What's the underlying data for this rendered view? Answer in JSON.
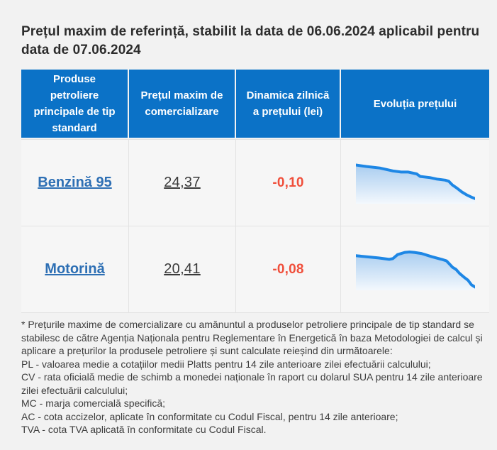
{
  "title": "Prețul maxim de referință, stabilit la data de 06.06.2024 aplicabil pentru data de 07.06.2024",
  "table": {
    "headers": [
      "Produse petroliere principale de tip standard",
      "Prețul maxim de comercializare",
      "Dinamica zilnică a prețului (lei)",
      "Evoluția prețului"
    ],
    "rows": [
      {
        "product": "Benzină 95",
        "price": "24,37",
        "delta": "-0,10"
      },
      {
        "product": "Motorină",
        "price": "20,41",
        "delta": "-0,08"
      }
    ]
  },
  "footnotes": [
    "* Prețurile maxime de comercializare cu amănuntul a produselor petroliere principale de tip standard se stabilesc de către Agenția Naționala pentru Reglementare în Energetică în baza Metodologiei de calcul și aplicare a prețurilor la produsele petroliere și sunt calculate reieșind din următoarele:",
    "PL - valoarea medie a cotațiilor medii Platts pentru 14 zile anterioare zilei efectuării calculului;",
    "CV - rata oficială medie de schimb a monedei naționale în raport cu dolarul SUA pentru 14 zile anterioare zilei efectuării calculului;",
    "MC - marja comercială specifică;",
    "AC - cota accizelor, aplicate în conformitate cu Codul Fiscal, pentru 14 zile anterioare;",
    "TVA - cota TVA aplicată în conformitate cu Codul Fiscal."
  ],
  "colors": {
    "header_bg": "#0b72c7",
    "link": "#2d6fb4",
    "negative": "#f04f3b",
    "sparkline_line": "#1e87e5",
    "sparkline_fill_top": "#a9cdf0",
    "sparkline_fill_bottom": "#f3f8fd",
    "page_bg": "#f2f2f2"
  },
  "chart_data": [
    {
      "type": "area",
      "name": "Benzină 95 — evoluția prețului (trend, normalizat)",
      "x": [
        0,
        0.09,
        0.2,
        0.31,
        0.38,
        0.44,
        0.51,
        0.54,
        0.62,
        0.68,
        0.75,
        0.78,
        0.81,
        0.85,
        0.89,
        0.93,
        0.97,
        1
      ],
      "values_normalized": [
        0.99,
        0.95,
        0.91,
        0.83,
        0.8,
        0.8,
        0.75,
        0.68,
        0.65,
        0.61,
        0.58,
        0.55,
        0.45,
        0.36,
        0.26,
        0.18,
        0.12,
        0.08
      ],
      "trend": "descending",
      "axes_visible": false
    },
    {
      "type": "area",
      "name": "Motorină — evoluția prețului (trend, normalizat)",
      "x": [
        0,
        0.09,
        0.19,
        0.28,
        0.31,
        0.35,
        0.41,
        0.45,
        0.49,
        0.55,
        0.64,
        0.72,
        0.76,
        0.79,
        0.81,
        0.84,
        0.87,
        0.91,
        0.94,
        0.97,
        1
      ],
      "values_normalized": [
        0.88,
        0.85,
        0.82,
        0.78,
        0.8,
        0.91,
        0.97,
        0.98,
        0.97,
        0.94,
        0.85,
        0.78,
        0.74,
        0.64,
        0.57,
        0.51,
        0.4,
        0.29,
        0.22,
        0.09,
        0.03
      ],
      "trend": "peak-then-descending",
      "axes_visible": false
    }
  ]
}
